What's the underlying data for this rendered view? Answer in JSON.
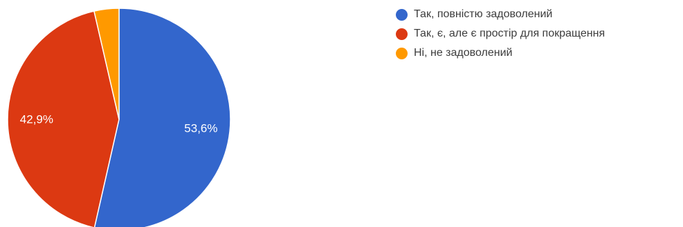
{
  "chart_data": {
    "type": "pie",
    "slices": [
      {
        "label": "Так, повністю задоволений",
        "value": 53.6,
        "display": "53,6%",
        "color": "#3366cc"
      },
      {
        "label": "Так, є, але є простір для покращення",
        "value": 42.9,
        "display": "42,9%",
        "color": "#dc3912"
      },
      {
        "label": "Ні, не задоволений",
        "value": 3.6,
        "display": "",
        "color": "#ff9900"
      }
    ],
    "start_angle_deg": 90,
    "direction": "clockwise",
    "legend_position": "right"
  }
}
